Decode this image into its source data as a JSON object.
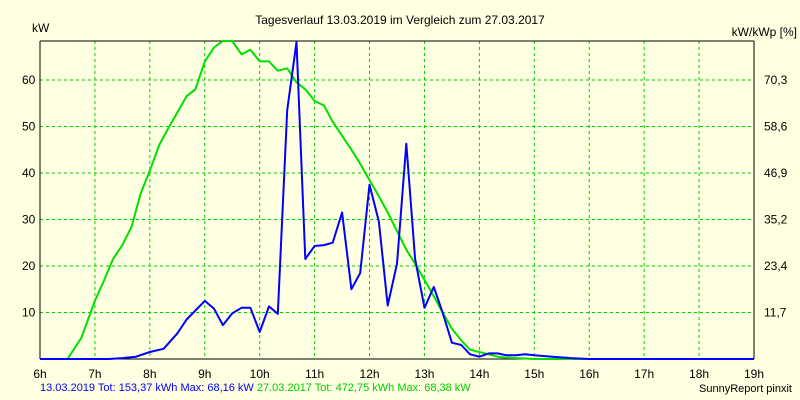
{
  "chart_data": {
    "type": "line",
    "title": "Tagesverlauf 13.03.2019 im Vergleich zum 27.03.2017",
    "ylabel": "kW",
    "ylabel_right": "kW/kWp [%]",
    "xlim": [
      6,
      19
    ],
    "ylim": [
      0,
      68.38
    ],
    "grid": true,
    "x_ticks": [
      6,
      7,
      8,
      9,
      10,
      11,
      12,
      13,
      14,
      15,
      16,
      17,
      18,
      19
    ],
    "x_tick_labels": [
      "6h",
      "7h",
      "8h",
      "9h",
      "10h",
      "11h",
      "12h",
      "13h",
      "14h",
      "15h",
      "16h",
      "17h",
      "18h",
      "19h"
    ],
    "y_ticks": [
      10,
      20,
      30,
      40,
      50,
      60
    ],
    "y_tick_labels": [
      "10",
      "20",
      "30",
      "40",
      "50",
      "60"
    ],
    "y2_tick_labels": [
      "11,7",
      "23,4",
      "35,2",
      "46,9",
      "58,6",
      "70,3"
    ],
    "colors": {
      "series_2019": "#0000ff",
      "series_2017": "#00e000",
      "grid": "#00cc00",
      "background": "#ffffe1"
    },
    "series": [
      {
        "name": "13.03.2019",
        "x": [
          6.0,
          6.5,
          7.0,
          7.25,
          7.5,
          7.75,
          8.0,
          8.25,
          8.5,
          8.67,
          9.0,
          9.17,
          9.33,
          9.5,
          9.67,
          9.83,
          10.0,
          10.17,
          10.33,
          10.5,
          10.67,
          10.83,
          11.0,
          11.17,
          11.33,
          11.5,
          11.67,
          11.83,
          12.0,
          12.17,
          12.33,
          12.5,
          12.67,
          12.83,
          13.0,
          13.17,
          13.33,
          13.5,
          13.67,
          13.83,
          14.0,
          14.17,
          14.33,
          14.5,
          14.67,
          14.83,
          15.0,
          15.33,
          15.67,
          16.0,
          16.33,
          16.67,
          17.0,
          17.33,
          17.67,
          18.0,
          18.33,
          18.67,
          19.0
        ],
        "values": [
          0,
          0,
          0,
          0,
          0.2,
          0.5,
          1.5,
          2.2,
          5.5,
          8.5,
          12.5,
          10.8,
          7.3,
          9.8,
          11.0,
          11.0,
          5.8,
          11.3,
          9.7,
          53.5,
          68.16,
          21.5,
          24.3,
          24.5,
          25.0,
          31.5,
          15.0,
          18.5,
          37.5,
          29.5,
          11.5,
          20.5,
          46.3,
          21.5,
          11.0,
          15.5,
          10.0,
          3.5,
          3.0,
          1.0,
          0.5,
          1.2,
          1.2,
          0.8,
          0.8,
          1.0,
          0.8,
          0.5,
          0.2,
          0,
          0,
          0,
          0,
          0,
          0,
          0,
          0,
          0,
          0
        ]
      },
      {
        "name": "27.03.2017",
        "x": [
          6.0,
          6.25,
          6.5,
          6.75,
          7.0,
          7.17,
          7.33,
          7.5,
          7.67,
          7.83,
          8.0,
          8.17,
          8.33,
          8.5,
          8.67,
          8.83,
          9.0,
          9.17,
          9.33,
          9.5,
          9.67,
          9.83,
          10.0,
          10.17,
          10.33,
          10.5,
          10.67,
          10.83,
          11.0,
          11.17,
          11.33,
          11.5,
          11.67,
          11.83,
          12.0,
          12.17,
          12.33,
          12.5,
          12.67,
          12.83,
          13.0,
          13.17,
          13.33,
          13.5,
          13.67,
          13.83,
          14.0,
          14.17,
          14.33,
          14.5,
          14.67,
          14.83,
          15.0,
          15.17,
          15.33,
          15.5,
          15.67,
          15.83,
          16.0,
          16.17,
          16.33,
          16.5,
          16.67,
          16.83,
          17.0,
          17.33,
          17.67,
          18.0,
          18.5,
          19.0
        ],
        "values": [
          0,
          0,
          0,
          4.5,
          12.5,
          17.0,
          21.5,
          24.5,
          28.5,
          35.5,
          40.5,
          46.0,
          49.5,
          53.0,
          56.5,
          58.0,
          64.0,
          67.0,
          68.38,
          68.38,
          65.5,
          66.5,
          64.0,
          64.0,
          62.0,
          62.5,
          59.5,
          58.0,
          55.5,
          54.5,
          51.0,
          48.0,
          45.0,
          42.0,
          38.5,
          35.0,
          31.5,
          27.5,
          23.5,
          20.5,
          17.0,
          13.5,
          10.0,
          6.5,
          4.0,
          2.0,
          1.5,
          1.0,
          0.5,
          0.3,
          0.2,
          0.1,
          0,
          0,
          0,
          0,
          0,
          0,
          0,
          0,
          0,
          0,
          0,
          0,
          0,
          0,
          0,
          0,
          0,
          0
        ]
      }
    ],
    "series_x_fix": true
  },
  "footer": {
    "left_2019": "13.03.2019 Tot: 153,37 kWh Max: 68,16 kW",
    "left_2017": "27.03.2017 Tot: 472,75 kWh Max: 68,38 kW",
    "right": "SunnyReport pinxit"
  }
}
